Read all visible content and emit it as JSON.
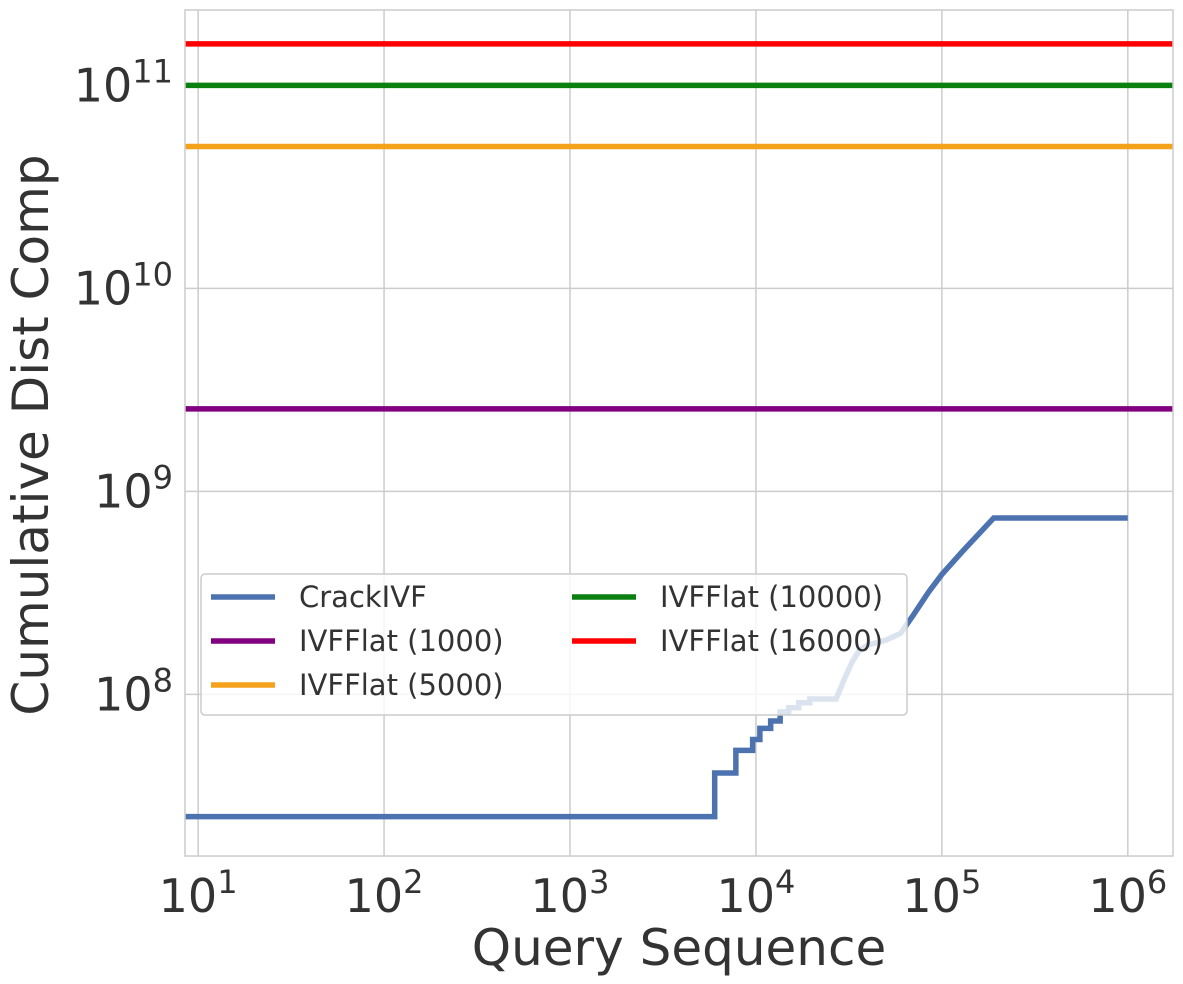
{
  "chart_data": {
    "type": "line",
    "title": "",
    "xlabel": "Query Sequence",
    "ylabel": "Cumulative Dist Comp",
    "x_scale": "log",
    "y_scale": "log",
    "xlim": [
      8.5,
      1750000
    ],
    "ylim": [
      16000000,
      235000000000
    ],
    "grid": true,
    "legend": {
      "position": "center-left",
      "columns": 2
    },
    "x_ticks": [
      {
        "base": "10",
        "exp": "1",
        "value": 10
      },
      {
        "base": "10",
        "exp": "2",
        "value": 100
      },
      {
        "base": "10",
        "exp": "3",
        "value": 1000
      },
      {
        "base": "10",
        "exp": "4",
        "value": 10000
      },
      {
        "base": "10",
        "exp": "5",
        "value": 100000
      },
      {
        "base": "10",
        "exp": "6",
        "value": 1000000
      }
    ],
    "y_ticks": [
      {
        "base": "10",
        "exp": "8",
        "value": 100000000
      },
      {
        "base": "10",
        "exp": "9",
        "value": 1000000000
      },
      {
        "base": "10",
        "exp": "10",
        "value": 10000000000
      },
      {
        "base": "10",
        "exp": "11",
        "value": 100000000000
      }
    ],
    "series": [
      {
        "name": "CrackIVF",
        "color": "#4c72b0",
        "step": true,
        "points": [
          [
            8.5,
            25000000
          ],
          [
            6000,
            25000000
          ],
          [
            6000,
            41000000
          ],
          [
            7800,
            41000000
          ],
          [
            7800,
            53000000
          ],
          [
            9600,
            53000000
          ],
          [
            9600,
            60000000
          ],
          [
            10500,
            60000000
          ],
          [
            10500,
            68000000
          ],
          [
            12000,
            68000000
          ],
          [
            12000,
            74000000
          ],
          [
            13500,
            74000000
          ],
          [
            13500,
            82000000
          ],
          [
            15000,
            82000000
          ],
          [
            15000,
            86000000
          ],
          [
            17000,
            86000000
          ],
          [
            17000,
            91000000
          ],
          [
            19500,
            91000000
          ],
          [
            19500,
            95000000
          ],
          [
            27000,
            95000000
          ],
          [
            30000,
            120000000
          ],
          [
            33000,
            145000000
          ],
          [
            36000,
            165000000
          ],
          [
            40000,
            175000000
          ],
          [
            50000,
            185000000
          ],
          [
            60000,
            200000000
          ],
          [
            70000,
            245000000
          ],
          [
            85000,
            320000000
          ],
          [
            100000,
            390000000
          ],
          [
            130000,
            510000000
          ],
          [
            190000,
            740000000
          ],
          [
            1000000,
            740000000
          ]
        ]
      },
      {
        "name": "IVFFlat (1000)",
        "color": "#800080",
        "step": false,
        "points": [
          [
            8.5,
            2550000000
          ],
          [
            1750000,
            2550000000
          ]
        ]
      },
      {
        "name": "IVFFlat (5000)",
        "color": "#f4a21a",
        "step": false,
        "points": [
          [
            8.5,
            50000000000
          ],
          [
            1750000,
            50000000000
          ]
        ]
      },
      {
        "name": "IVFFlat (10000)",
        "color": "#0a8010",
        "step": false,
        "points": [
          [
            8.5,
            100000000000
          ],
          [
            1750000,
            100000000000
          ]
        ]
      },
      {
        "name": "IVFFlat (16000)",
        "color": "#ff0000",
        "step": false,
        "points": [
          [
            8.5,
            160000000000
          ],
          [
            1750000,
            160000000000
          ]
        ]
      }
    ]
  }
}
